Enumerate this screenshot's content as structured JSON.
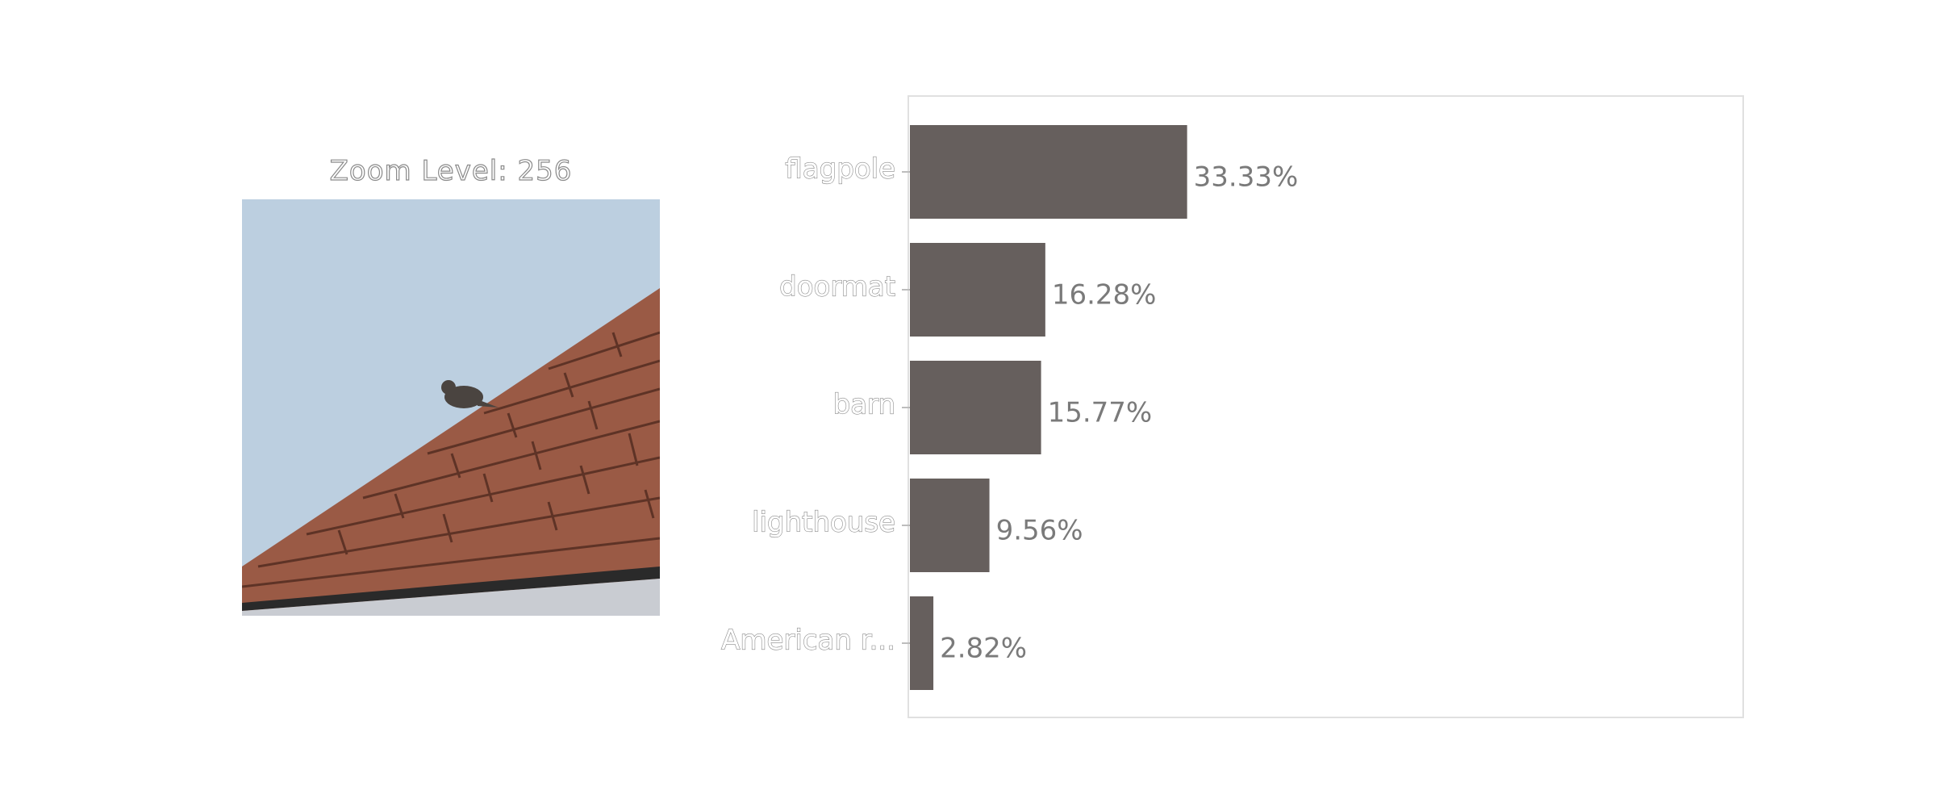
{
  "zoom": {
    "title": "Zoom Level: 256"
  },
  "photo": {
    "icon": "bird-on-roof-photo",
    "colors": {
      "sky": "#bccfe0",
      "roof": "#9a5a45",
      "shingle_line": "#5e3326",
      "gutter": "#2a2a2a",
      "fascia": "#c9ccd2",
      "bird": "#4a4440"
    }
  },
  "chart_data": {
    "type": "bar",
    "orientation": "horizontal",
    "categories": [
      "flagpole",
      "doormat",
      "barn",
      "lighthouse",
      "American r..."
    ],
    "values": [
      33.33,
      16.28,
      15.77,
      9.56,
      2.82
    ],
    "value_labels": [
      "33.33%",
      "16.28%",
      "15.77%",
      "9.56%",
      "2.82%"
    ],
    "xlim": [
      0,
      100
    ],
    "bar_color": "#665f5d",
    "grid": false,
    "legend": "none"
  }
}
